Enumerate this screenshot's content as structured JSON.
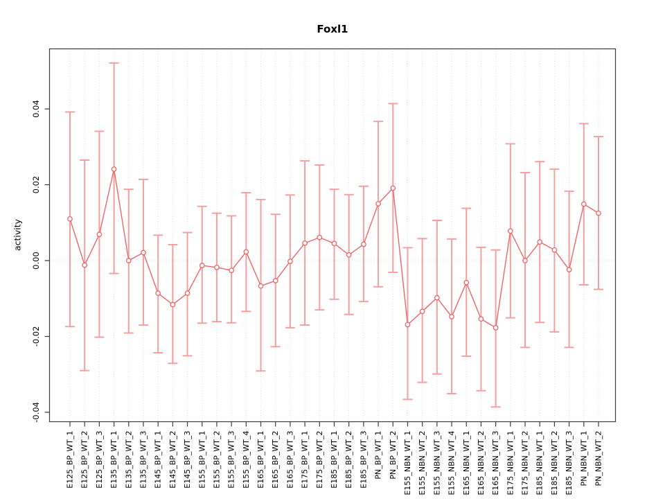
{
  "chart_data": {
    "type": "scatter",
    "title": "Foxl1",
    "xlabel": "",
    "ylabel": "activity",
    "ylim": [
      -0.0463,
      0.0562
    ],
    "legend": "none",
    "grid": "vertical dotted line per category; horizontal dotted line at y=0",
    "marker": "open-circle",
    "series_color": "#ee6565",
    "error_bar_color": "#f4a0a0",
    "grid_color": "#dcdcdc",
    "border_color": "#3a3a3a",
    "y_ticks": [
      {
        "value": 0.04,
        "label": "0.04"
      },
      {
        "value": 0.02,
        "label": "0.02"
      },
      {
        "value": 0.0,
        "label": "0.00"
      },
      {
        "value": -0.02,
        "label": "-0.02"
      },
      {
        "value": -0.04,
        "label": "-0.04"
      }
    ],
    "categories": [
      "E125_BP_WT_1",
      "E125_BP_WT_2",
      "E125_BP_WT_3",
      "E135_BP_WT_1",
      "E135_BP_WT_2",
      "E135_BP_WT_3",
      "E145_BP_WT_1",
      "E145_BP_WT_2",
      "E145_BP_WT_3",
      "E155_BP_WT_1",
      "E155_BP_WT_2",
      "E155_BP_WT_3",
      "E155_BP_WT_4",
      "E165_BP_WT_1",
      "E165_BP_WT_2",
      "E165_BP_WT_3",
      "E175_BP_WT_1",
      "E175_BP_WT_2",
      "E185_BP_WT_1",
      "E185_BP_WT_2",
      "E185_BP_WT_3",
      "PN_BP_WT_1",
      "PN_BP_WT_2",
      "E155_NBN_WT_1",
      "E155_NBN_WT_2",
      "E155_NBN_WT_3",
      "E155_NBN_WT_4",
      "E165_NBN_WT_1",
      "E165_NBN_WT_2",
      "E165_NBN_WT_3",
      "E175_NBN_WT_1",
      "E175_NBN_WT_2",
      "E185_NBN_WT_1",
      "E185_NBN_WT_2",
      "E185_NBN_WT_3",
      "PN_NBN_WT_1",
      "PN_NBN_WT_2"
    ],
    "values": [
      0.011,
      -0.0012,
      0.0069,
      0.0241,
      0.0,
      0.0021,
      -0.0086,
      -0.0116,
      -0.0086,
      -0.0013,
      -0.0018,
      -0.0026,
      0.0023,
      -0.0067,
      -0.0053,
      -0.0002,
      0.0046,
      0.0061,
      0.0045,
      0.0015,
      0.0043,
      0.015,
      0.0191,
      -0.0169,
      -0.0134,
      -0.0098,
      -0.0148,
      -0.0058,
      -0.0154,
      -0.0177,
      0.0078,
      0.0,
      0.0049,
      0.0028,
      -0.0024,
      0.0149,
      0.0125
    ],
    "ci_high": [
      0.0392,
      0.0265,
      0.0341,
      0.0521,
      0.0188,
      0.0214,
      0.0067,
      0.0042,
      0.0074,
      0.0143,
      0.0125,
      0.0118,
      0.0179,
      0.0161,
      0.0122,
      0.0173,
      0.0263,
      0.0252,
      0.0188,
      0.0174,
      0.0196,
      0.0367,
      0.0414,
      0.0034,
      0.0058,
      0.0106,
      0.0057,
      0.0138,
      0.0035,
      0.0028,
      0.0308,
      0.0232,
      0.0261,
      0.0241,
      0.0183,
      0.0361,
      0.0327
    ],
    "ci_low": [
      -0.0174,
      -0.029,
      -0.0202,
      -0.0034,
      -0.0191,
      -0.017,
      -0.0243,
      -0.0271,
      -0.0251,
      -0.0165,
      -0.0161,
      -0.0164,
      -0.0134,
      -0.0291,
      -0.0227,
      -0.0177,
      -0.017,
      -0.013,
      -0.0102,
      -0.0142,
      -0.0108,
      -0.0069,
      -0.0031,
      -0.0366,
      -0.0321,
      -0.0299,
      -0.0351,
      -0.0252,
      -0.0343,
      -0.0386,
      -0.0151,
      -0.0229,
      -0.0163,
      -0.0188,
      -0.0229,
      -0.0064,
      -0.0076
    ]
  }
}
